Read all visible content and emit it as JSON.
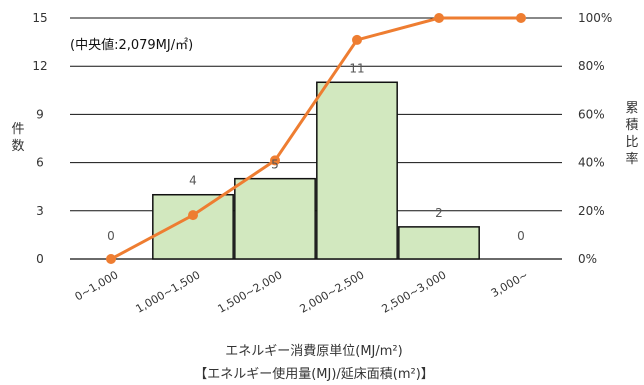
{
  "chart_data": {
    "type": "bar",
    "categories": [
      "0~1,000",
      "1,000~1,500",
      "1,500~2,000",
      "2,000~2,500",
      "2,500~3,000",
      "3,000~"
    ],
    "series": [
      {
        "values": [
          0,
          4,
          5,
          11,
          2,
          0
        ],
        "type": "bar"
      },
      {
        "values": [
          0,
          18.2,
          40.9,
          90.9,
          100,
          100
        ],
        "type": "line",
        "axis": "right"
      }
    ],
    "data_labels": [
      "0",
      "4",
      "5",
      "11",
      "2",
      "0"
    ],
    "ylim": [
      0,
      15
    ],
    "yticks": [
      "0",
      "3",
      "6",
      "9",
      "12",
      "15"
    ],
    "y2lim": [
      0,
      100
    ],
    "y2ticks": [
      "0%",
      "20%",
      "40%",
      "60%",
      "80%",
      "100%"
    ],
    "ylabel": "件数",
    "y2label": "累積比率",
    "xlabel": "エネルギー消費原単位(MJ/m²)",
    "xlabel_sub": "【エネルギー使用量(MJ)/延床面積(m²)】",
    "annotation": "(中央値:2,079MJ/㎡)",
    "grid": true,
    "colors": {
      "bar_fill": "#d2e8bf",
      "bar_stroke": "#111111",
      "line": "#ee7d31",
      "grid": "#111111"
    }
  }
}
